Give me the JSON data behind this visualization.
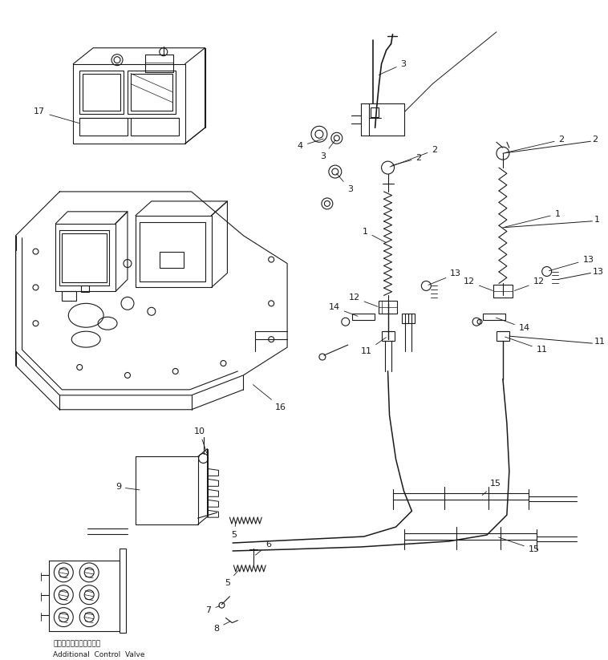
{
  "bg_color": "#ffffff",
  "line_color": "#1a1a1a",
  "figsize": [
    7.58,
    8.23
  ],
  "dpi": 100,
  "bottom_label_jp": "増設コントロールバルブ",
  "bottom_label_en": "Additional  Control  Valve"
}
